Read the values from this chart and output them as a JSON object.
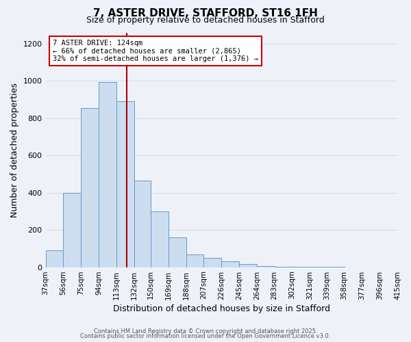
{
  "title": "7, ASTER DRIVE, STAFFORD, ST16 1FH",
  "subtitle": "Size of property relative to detached houses in Stafford",
  "xlabel": "Distribution of detached houses by size in Stafford",
  "ylabel": "Number of detached properties",
  "bins": [
    37,
    56,
    75,
    94,
    113,
    132,
    150,
    169,
    188,
    207,
    226,
    245,
    264,
    283,
    302,
    321,
    339,
    358,
    377,
    396,
    415
  ],
  "values": [
    90,
    400,
    855,
    995,
    890,
    465,
    300,
    160,
    70,
    50,
    30,
    15,
    5,
    2,
    2,
    1,
    1,
    0,
    0,
    0
  ],
  "bar_color": "#ccddf0",
  "bar_edge_color": "#6699cc",
  "vline_x": 124,
  "vline_color": "#aa0000",
  "annotation_line1": "7 ASTER DRIVE: 124sqm",
  "annotation_line2": "← 66% of detached houses are smaller (2,865)",
  "annotation_line3": "32% of semi-detached houses are larger (1,376) →",
  "ylim": [
    0,
    1260
  ],
  "yticks": [
    0,
    200,
    400,
    600,
    800,
    1000,
    1200
  ],
  "grid_color": "#d0dded",
  "footer_line1": "Contains HM Land Registry data © Crown copyright and database right 2025.",
  "footer_line2": "Contains public sector information licensed under the Open Government Licence v3.0.",
  "bg_color": "#eef2f8"
}
